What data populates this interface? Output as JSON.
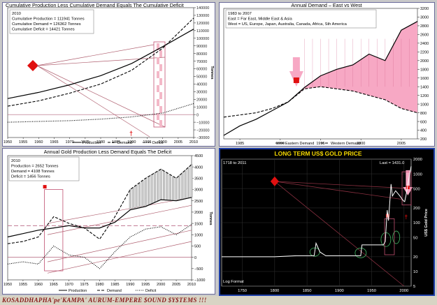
{
  "charts": {
    "cumulative": {
      "title": "Cumulative Production Less Cumulative Demand Equals The Cumulative Deficit",
      "box": [
        "2010",
        "Cumulative Production = 111941  Tonnes",
        "Cumulative Demand = 126362  Tonnes",
        "Cumulative Deficit = 14421  Tonnes"
      ],
      "ylabel": "Tonnes",
      "legend": [
        "Production",
        "Demand",
        "Deficit"
      ]
    },
    "annual_demand": {
      "title": "Annual Demand – East vs West",
      "box": [
        "1983 to 2007",
        "East = Far East, Middle East & Asia",
        "West = US, Europe, Japan, Australia, Canada, Africa, Sth America"
      ],
      "ylabel": "Tonnes",
      "legend": [
        "Eastern Demand",
        "Western Demand"
      ]
    },
    "annual_gold": {
      "title": "Annual Gold Production Less Demand Equals The Deficit",
      "box": [
        "2010",
        "Production = 2652  Tonnes",
        "Demand = 4108  Tonnes",
        "Deficit = 1456  Tonnes"
      ],
      "ylabel": "Tonnes",
      "legend": [
        "Production",
        "Demand",
        "Deficit"
      ]
    },
    "long_term": {
      "title": "LONG TERM US$ GOLD PRICE",
      "range_label": "1718 to 2011",
      "last_label": "Last = 1431.0",
      "log_label": "Log Format",
      "ylabel": "US$ Gold Price"
    }
  },
  "chart_data": [
    {
      "type": "line",
      "title": "Cumulative Production Less Cumulative Demand Equals The Cumulative Deficit",
      "ylabel": "Tonnes",
      "xlim": [
        1950,
        2010
      ],
      "ylim": [
        -30000,
        140000
      ],
      "x_ticks": [
        1950,
        1955,
        1960,
        1965,
        1970,
        1975,
        1980,
        1985,
        1990,
        1995,
        2000,
        2005,
        2010
      ],
      "y_ticks": [
        -30000,
        -20000,
        -10000,
        0,
        10000,
        20000,
        30000,
        40000,
        50000,
        60000,
        70000,
        80000,
        90000,
        100000,
        110000,
        120000,
        130000,
        140000
      ],
      "series": [
        {
          "name": "Production",
          "x": [
            1950,
            1960,
            1970,
            1980,
            1990,
            2000,
            2010
          ],
          "values": [
            21000,
            29000,
            39000,
            51000,
            67000,
            89000,
            111941
          ]
        },
        {
          "name": "Demand",
          "x": [
            1950,
            1960,
            1970,
            1980,
            1990,
            2000,
            2010
          ],
          "values": [
            11000,
            18000,
            28000,
            40000,
            58000,
            87000,
            126362
          ]
        },
        {
          "name": "Deficit",
          "x": [
            1950,
            1960,
            1970,
            1980,
            1990,
            2000,
            2010
          ],
          "values": [
            -10000,
            -9000,
            -8000,
            -6000,
            -3000,
            2000,
            14421
          ]
        }
      ]
    },
    {
      "type": "area",
      "title": "Annual Demand – East vs West",
      "ylabel": "Tonnes",
      "xlim": [
        1983,
        2007
      ],
      "ylim": [
        200,
        3200
      ],
      "x_ticks": [
        1985,
        1990,
        1995,
        2000,
        2005
      ],
      "y_ticks": [
        200,
        400,
        600,
        800,
        1000,
        1200,
        1400,
        1600,
        1800,
        2000,
        2200,
        2400,
        2600,
        2800,
        3000,
        3200
      ],
      "series": [
        {
          "name": "Eastern Demand",
          "x": [
            1983,
            1985,
            1987,
            1989,
            1991,
            1993,
            1995,
            1997,
            1999,
            2001,
            2003,
            2005,
            2007
          ],
          "values": [
            280,
            500,
            650,
            850,
            1050,
            1380,
            1650,
            1800,
            1900,
            2150,
            2000,
            2700,
            2900
          ]
        },
        {
          "name": "Western Demand",
          "x": [
            1983,
            1985,
            1987,
            1989,
            1991,
            1993,
            1995,
            1997,
            1999,
            2001,
            2003,
            2005,
            2007
          ],
          "values": [
            700,
            750,
            800,
            900,
            1050,
            1350,
            1400,
            1350,
            1300,
            1200,
            1100,
            900,
            800
          ]
        }
      ]
    },
    {
      "type": "line",
      "title": "Annual Gold Production Less Demand Equals The Deficit",
      "ylabel": "Tonnes",
      "xlim": [
        1950,
        2010
      ],
      "ylim": [
        -1000,
        4500
      ],
      "x_ticks": [
        1950,
        1955,
        1960,
        1965,
        1970,
        1975,
        1980,
        1985,
        1990,
        1995,
        2000,
        2005,
        2010
      ],
      "y_ticks": [
        -1000,
        -500,
        0,
        500,
        1000,
        1500,
        2000,
        2500,
        3000,
        3500,
        4000,
        4500
      ],
      "series": [
        {
          "name": "Production",
          "x": [
            1950,
            1955,
            1960,
            1965,
            1970,
            1975,
            1980,
            1985,
            1990,
            1995,
            2000,
            2005,
            2010
          ],
          "values": [
            900,
            1050,
            1200,
            1300,
            1400,
            1300,
            1300,
            1550,
            2100,
            2250,
            2550,
            2500,
            2652
          ]
        },
        {
          "name": "Demand",
          "x": [
            1950,
            1955,
            1960,
            1965,
            1970,
            1975,
            1980,
            1985,
            1990,
            1995,
            2000,
            2005,
            2010
          ],
          "values": [
            600,
            700,
            900,
            1800,
            1500,
            1300,
            800,
            1800,
            3000,
            3500,
            3900,
            3500,
            4108
          ]
        },
        {
          "name": "Deficit",
          "x": [
            1950,
            1955,
            1960,
            1965,
            1970,
            1975,
            1980,
            1985,
            1990,
            1995,
            2000,
            2005,
            2010
          ],
          "values": [
            -300,
            -200,
            -300,
            500,
            100,
            0,
            -500,
            250,
            900,
            1250,
            1350,
            1000,
            1456
          ]
        }
      ]
    },
    {
      "type": "line",
      "title": "LONG TERM US$ GOLD PRICE",
      "ylabel": "US$ Gold Price",
      "y_scale": "log",
      "xlim": [
        1718,
        2011
      ],
      "ylim": [
        5,
        2000
      ],
      "x_ticks": [
        1750,
        1800,
        1850,
        1900,
        1950,
        2000
      ],
      "y_ticks": [
        5,
        10,
        20,
        50,
        100,
        200,
        500,
        1000,
        2000
      ],
      "series": [
        {
          "name": "Gold Price",
          "x": [
            1718,
            1800,
            1834,
            1861,
            1864,
            1870,
            1879,
            1933,
            1935,
            1968,
            1971,
            1974,
            1976,
            1980,
            1982,
            1987,
            1993,
            1999,
            2001,
            2003,
            2006,
            2008,
            2011
          ],
          "values": [
            20,
            20,
            21,
            21,
            38,
            25,
            21,
            21,
            35,
            35,
            41,
            180,
            110,
            615,
            350,
            450,
            360,
            280,
            270,
            360,
            600,
            870,
            1431
          ]
        }
      ],
      "last": 1431.0
    }
  ]
}
